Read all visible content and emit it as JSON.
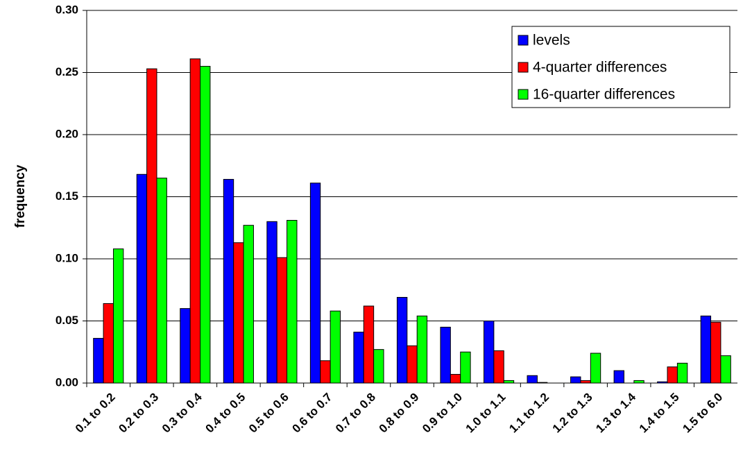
{
  "chart_data": {
    "type": "bar",
    "y_label": "frequency",
    "categories": [
      "0.1 to 0.2",
      "0.2 to 0.3",
      "0.3 to 0.4",
      "0.4 to 0.5",
      "0.5 to 0.6",
      "0.6 to 0.7",
      "0.7 to 0.8",
      "0.8 to 0.9",
      "0.9 to 1.0",
      "1.0 to 1.1",
      "1.1 to 1.2",
      "1.2 to 1.3",
      "1.3 to 1.4",
      "1.4 to 1.5",
      "1.5 to 6.0"
    ],
    "series": [
      {
        "name": "levels",
        "color": "#0000ff",
        "values": [
          0.036,
          0.168,
          0.06,
          0.164,
          0.13,
          0.161,
          0.041,
          0.069,
          0.045,
          0.05,
          0.006,
          0.005,
          0.01,
          0.001,
          0.054
        ]
      },
      {
        "name": "4-quarter differences",
        "color": "#ff0000",
        "values": [
          0.064,
          0.253,
          0.261,
          0.113,
          0.101,
          0.018,
          0.062,
          0.03,
          0.007,
          0.026,
          0.0005,
          0.002,
          0,
          0.013,
          0.049
        ]
      },
      {
        "name": "16-quarter differences",
        "color": "#00ff00",
        "values": [
          0.108,
          0.165,
          0.255,
          0.127,
          0.131,
          0.058,
          0.027,
          0.054,
          0.025,
          0.002,
          0,
          0.024,
          0.002,
          0.016,
          0.022
        ]
      }
    ],
    "ylim": [
      0,
      0.3
    ],
    "yticks": [
      {
        "value": 0,
        "label": "0.00"
      },
      {
        "value": 0.05,
        "label": "0.05"
      },
      {
        "value": 0.1,
        "label": "0.10"
      },
      {
        "value": 0.15,
        "label": "0.15"
      },
      {
        "value": 0.2,
        "label": "0.20"
      },
      {
        "value": 0.25,
        "label": "0.25"
      },
      {
        "value": 0.3,
        "label": "0.30"
      }
    ],
    "grid": true,
    "legend": "top-right"
  }
}
